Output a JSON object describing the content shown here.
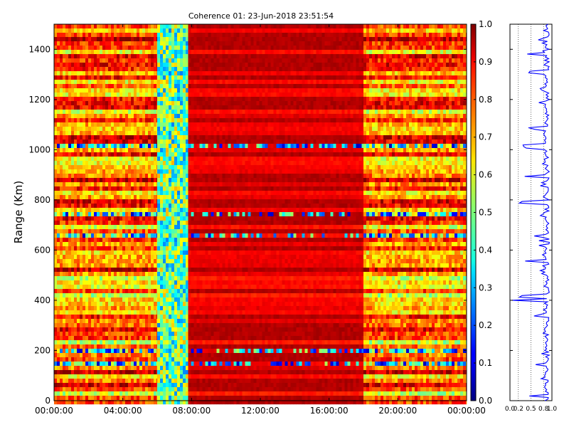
{
  "chart_data": [
    {
      "type": "heatmap",
      "title": "Coherence 01: 23-Jun-2018 23:51:54",
      "ylabel": "Range (Km)",
      "xlabel": "",
      "x_ticks": [
        "00:00:00",
        "04:00:00",
        "08:00:00",
        "12:00:00",
        "16:00:00",
        "20:00:00",
        "00:00:00"
      ],
      "y_ticks": [
        "0",
        "200",
        "400",
        "600",
        "800",
        "1000",
        "1200",
        "1400"
      ],
      "x_range_hours": [
        0,
        24
      ],
      "ylim": [
        0,
        1500
      ],
      "colorbar": {
        "range": [
          0.0,
          1.0
        ],
        "ticks": [
          "0.0",
          "0.1",
          "0.2",
          "0.3",
          "0.4",
          "0.5",
          "0.6",
          "0.7",
          "0.8",
          "0.9",
          "1.0"
        ],
        "colormap": "jet"
      },
      "segments": [
        {
          "start_hour": 0.0,
          "end_hour": 6.0,
          "typical_coherence": 0.85
        },
        {
          "start_hour": 6.0,
          "end_hour": 7.8,
          "typical_coherence": 0.45
        },
        {
          "start_hour": 7.8,
          "end_hour": 18.0,
          "typical_coherence": 0.95
        },
        {
          "start_hour": 18.0,
          "end_hour": 24.0,
          "typical_coherence": 0.85
        }
      ],
      "low_coherence_ranges_km": [
        20,
        145,
        200,
        290,
        340,
        495,
        655,
        740,
        1010,
        1020
      ]
    },
    {
      "type": "line",
      "title": "",
      "xlabel": "",
      "ylabel": "",
      "x_ticks": [
        "0.0",
        "0.2",
        "0.5",
        "0.8",
        "1.0"
      ],
      "xlim": [
        0,
        1
      ],
      "ylim": [
        0,
        1500
      ],
      "grid": "vertical dotted",
      "series_color": "#0000ff",
      "typical_value": 0.88,
      "dips": [
        {
          "range_km": 20,
          "value": 0.4
        },
        {
          "range_km": 145,
          "value": 0.55
        },
        {
          "range_km": 290,
          "value": 0.7
        },
        {
          "range_km": 340,
          "value": 0.55
        },
        {
          "range_km": 400,
          "value": 0.05
        },
        {
          "range_km": 415,
          "value": 0.1
        },
        {
          "range_km": 555,
          "value": 0.3
        },
        {
          "range_km": 655,
          "value": 0.65
        },
        {
          "range_km": 740,
          "value": 0.6
        },
        {
          "range_km": 790,
          "value": 0.1
        },
        {
          "range_km": 895,
          "value": 0.3
        },
        {
          "range_km": 1010,
          "value": 0.2
        },
        {
          "range_km": 1020,
          "value": 0.25
        },
        {
          "range_km": 1085,
          "value": 0.4
        },
        {
          "range_km": 1260,
          "value": 0.75
        },
        {
          "range_km": 1310,
          "value": 0.35
        },
        {
          "range_km": 1380,
          "value": 0.35
        }
      ]
    }
  ]
}
